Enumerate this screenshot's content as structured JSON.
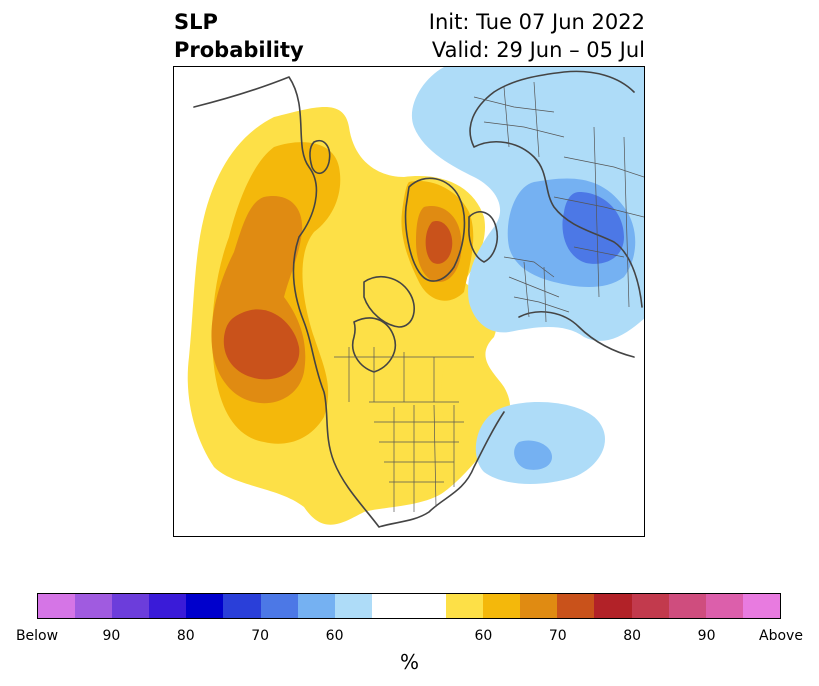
{
  "title": {
    "left_line1": "SLP",
    "left_line2": "Probability",
    "right_line1": "Init: Tue 07 Jun 2022",
    "right_line2": "Valid: 29 Jun – 05 Jul"
  },
  "colorbar": {
    "below_colors": [
      "#d575e6",
      "#a05be0",
      "#6c3ddb",
      "#3a1bd8",
      "#0000cc",
      "#2a3fd9",
      "#4c78e6",
      "#75b1f2",
      "#aedcf8"
    ],
    "neutral_color": "#ffffff",
    "above_colors": [
      "#fde047",
      "#f4b80b",
      "#e08b12",
      "#c9521b",
      "#b22228",
      "#c23a4d",
      "#cf4d7e",
      "#dc5fab",
      "#e87be0"
    ],
    "labels": [
      "Below",
      "90",
      "80",
      "70",
      "60",
      "60",
      "70",
      "80",
      "90",
      "Above"
    ],
    "unit": "%"
  },
  "map": {
    "region": "northern-hemisphere-polar-stereographic",
    "fill_colors": {
      "above_50": "#fde047",
      "above_60": "#f4b80b",
      "above_70": "#e08b12",
      "above_80": "#c9521b",
      "below_50": "#aedcf8",
      "below_60": "#75b1f2",
      "below_70": "#4c78e6"
    },
    "coast_color": "#444444",
    "border_color": "#555555"
  }
}
